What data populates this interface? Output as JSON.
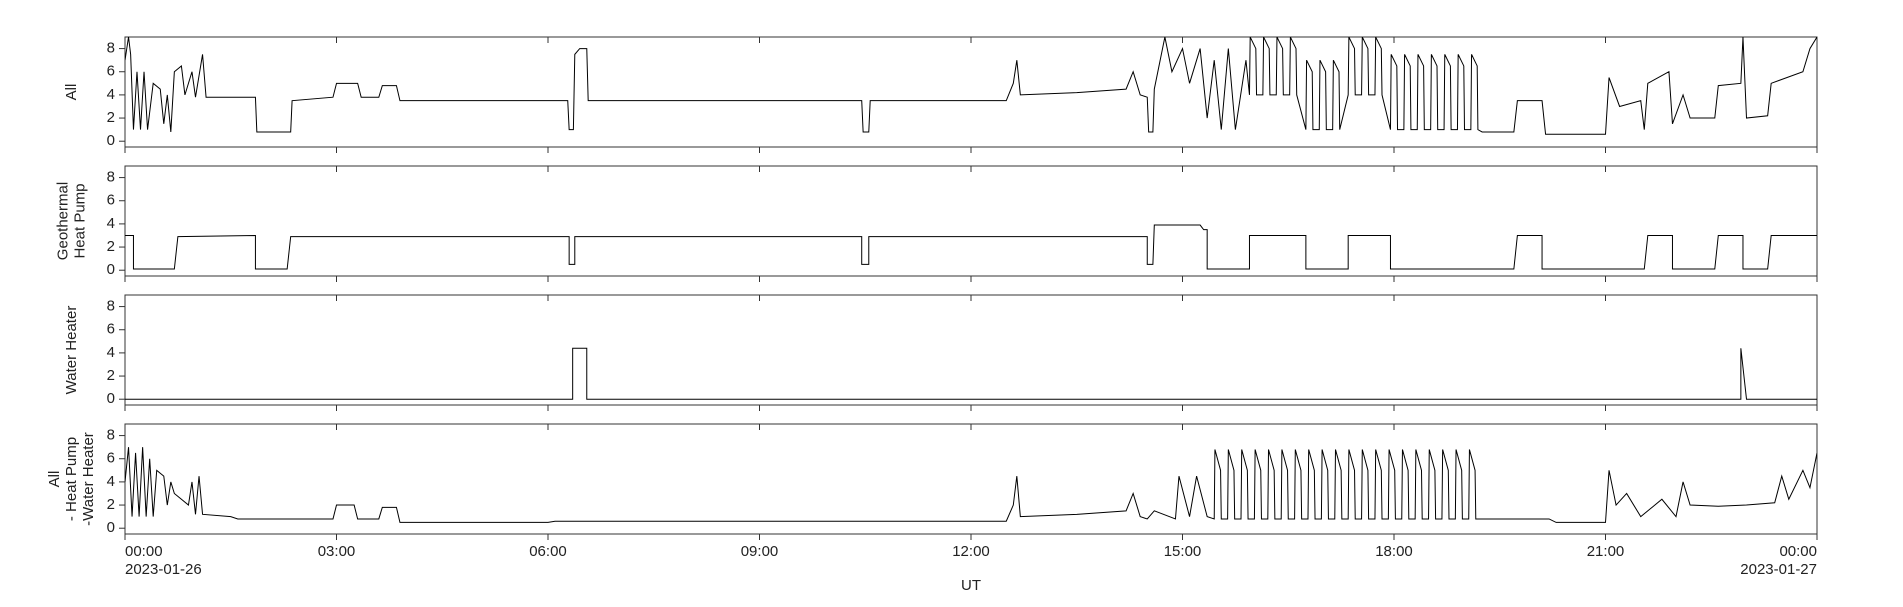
{
  "chart_data": [
    {
      "type": "line",
      "ylabel": [
        "All"
      ],
      "xlim": [
        0,
        24
      ],
      "xticks": [
        0,
        3,
        6,
        9,
        12,
        15,
        18,
        21,
        24
      ],
      "ylim": [
        -0.5,
        9
      ],
      "yticks": [
        0,
        2,
        4,
        6,
        8
      ],
      "color": "#000000",
      "x": [
        0,
        0.05,
        0.08,
        0.12,
        0.17,
        0.22,
        0.27,
        0.32,
        0.4,
        0.5,
        0.55,
        0.6,
        0.65,
        0.7,
        0.8,
        0.85,
        0.95,
        1.0,
        1.1,
        1.15,
        1.85,
        1.87,
        2.35,
        2.37,
        2.95,
        3.0,
        3.3,
        3.35,
        3.6,
        3.65,
        3.85,
        3.9,
        6.28,
        6.3,
        6.36,
        6.38,
        6.45,
        6.55,
        6.57,
        10.45,
        10.47,
        10.55,
        10.57,
        12.5,
        12.6,
        12.65,
        12.7,
        13.5,
        14.2,
        14.3,
        14.4,
        14.5,
        14.52,
        14.58,
        14.6,
        14.75,
        14.85,
        15.0,
        15.1,
        15.25,
        15.35,
        15.45,
        15.55,
        15.65,
        15.75,
        15.9,
        15.95,
        15.96,
        16.04,
        16.05,
        16.14,
        16.15,
        16.23,
        16.24,
        16.33,
        16.34,
        16.42,
        16.43,
        16.52,
        16.53,
        16.61,
        16.62,
        16.75,
        16.76,
        16.84,
        16.85,
        16.94,
        16.95,
        17.03,
        17.04,
        17.13,
        17.14,
        17.22,
        17.23,
        17.35,
        17.36,
        17.44,
        17.45,
        17.54,
        17.55,
        17.63,
        17.64,
        17.73,
        17.74,
        17.82,
        17.83,
        17.95,
        17.96,
        18.04,
        18.05,
        18.14,
        18.15,
        18.23,
        18.24,
        18.33,
        18.34,
        18.42,
        18.43,
        18.52,
        18.53,
        18.61,
        18.62,
        18.71,
        18.72,
        18.8,
        18.81,
        18.9,
        18.91,
        18.99,
        19.0,
        19.09,
        19.1,
        19.18,
        19.19,
        19.25,
        19.7,
        19.75,
        20.1,
        20.15,
        21.0,
        21.05,
        21.2,
        21.5,
        21.55,
        21.6,
        21.9,
        21.95,
        22.1,
        22.2,
        22.55,
        22.6,
        22.92,
        22.95,
        23.0,
        23.3,
        23.35,
        23.8,
        23.9,
        24
      ],
      "values": [
        7,
        9,
        7.5,
        1,
        6,
        1,
        6,
        1,
        5,
        4.5,
        1.5,
        4,
        0.8,
        6,
        6.5,
        4,
        6,
        3.8,
        7.5,
        3.8,
        3.8,
        0.8,
        0.8,
        3.5,
        3.8,
        5,
        5,
        3.8,
        3.8,
        4.8,
        4.8,
        3.5,
        3.5,
        1,
        1,
        7.5,
        8,
        8,
        3.5,
        3.5,
        0.8,
        0.8,
        3.5,
        3.5,
        5,
        7,
        4,
        4.2,
        4.5,
        6,
        4,
        3.8,
        0.8,
        0.8,
        4.5,
        9,
        6,
        8,
        5,
        8,
        2,
        7,
        1,
        8,
        1,
        7,
        4,
        9,
        8,
        4,
        4,
        9,
        8,
        4,
        4,
        9,
        8,
        4,
        4,
        9,
        8,
        4,
        1,
        7,
        6,
        1,
        1,
        7,
        6,
        1,
        1,
        7,
        6,
        1,
        4,
        9,
        8,
        4,
        4,
        9,
        8,
        4,
        4,
        9,
        8,
        4,
        1,
        7.5,
        6.5,
        1,
        1,
        7.5,
        6.5,
        1,
        1,
        7.5,
        6.5,
        1,
        1,
        7.5,
        6.5,
        1,
        1,
        7.5,
        6.5,
        1,
        1,
        7.5,
        6.5,
        1,
        1,
        7.5,
        6.5,
        1,
        0.8,
        0.8,
        3.5,
        3.5,
        0.6,
        0.6,
        5.5,
        3,
        3.5,
        1,
        5,
        6,
        1.5,
        4,
        2,
        2,
        4.8,
        5,
        9,
        2,
        2.2,
        5,
        6,
        8,
        9
      ]
    },
    {
      "type": "line",
      "ylabel": [
        "Geothermal",
        "Heat Pump"
      ],
      "xlim": [
        0,
        24
      ],
      "xticks": [
        0,
        3,
        6,
        9,
        12,
        15,
        18,
        21,
        24
      ],
      "ylim": [
        -0.5,
        9
      ],
      "yticks": [
        0,
        2,
        4,
        6,
        8
      ],
      "color": "#000000",
      "x": [
        0,
        0.12,
        0.12,
        0.7,
        0.75,
        1.85,
        1.85,
        2.05,
        2.05,
        2.3,
        2.35,
        6.3,
        6.3,
        6.38,
        6.38,
        10.45,
        10.45,
        10.55,
        10.55,
        14.5,
        14.5,
        14.58,
        14.6,
        15.25,
        15.3,
        15.35,
        15.35,
        15.95,
        15.95,
        16.75,
        16.75,
        17.35,
        17.35,
        17.95,
        17.95,
        19.7,
        19.75,
        20.1,
        20.1,
        21.55,
        21.6,
        21.95,
        21.95,
        22.55,
        22.6,
        22.95,
        22.95,
        23.3,
        23.35,
        24
      ],
      "values": [
        3,
        3,
        0.1,
        0.1,
        2.9,
        3,
        0.1,
        0.1,
        0.1,
        0.1,
        2.9,
        2.9,
        0.5,
        0.5,
        2.9,
        2.9,
        0.5,
        0.5,
        2.9,
        2.9,
        0.5,
        0.5,
        3.9,
        3.9,
        3.5,
        3.5,
        0.1,
        0.1,
        3,
        3,
        0.1,
        0.1,
        3,
        3,
        0.1,
        0.1,
        3,
        3,
        0.1,
        0.1,
        3,
        3,
        0.1,
        0.1,
        3,
        3,
        0.1,
        0.1,
        3,
        3
      ]
    },
    {
      "type": "line",
      "ylabel": [
        "Water Heater"
      ],
      "xlim": [
        0,
        24
      ],
      "xticks": [
        0,
        3,
        6,
        9,
        12,
        15,
        18,
        21,
        24
      ],
      "ylim": [
        -0.5,
        9
      ],
      "yticks": [
        0,
        2,
        4,
        6,
        8
      ],
      "color": "#000000",
      "x": [
        0,
        6.35,
        6.35,
        6.55,
        6.55,
        22.92,
        22.92,
        23.0,
        24
      ],
      "values": [
        0,
        0,
        4.4,
        4.4,
        0,
        0,
        4.4,
        0,
        0
      ]
    },
    {
      "type": "line",
      "ylabel": [
        "All",
        "- Heat Pump",
        "-Water Heater"
      ],
      "xlim": [
        0,
        24
      ],
      "ylim": [
        -0.5,
        9
      ],
      "yticks": [
        0,
        2,
        4,
        6,
        8
      ],
      "color": "#000000",
      "xticks": [
        {
          "value": 0,
          "label": "00:00"
        },
        {
          "value": 3,
          "label": "03:00"
        },
        {
          "value": 6,
          "label": "06:00"
        },
        {
          "value": 9,
          "label": "09:00"
        },
        {
          "value": 12,
          "label": "12:00"
        },
        {
          "value": 15,
          "label": "15:00"
        },
        {
          "value": 18,
          "label": "18:00"
        },
        {
          "value": 21,
          "label": "21:00"
        },
        {
          "value": 24,
          "label": "00:00"
        }
      ],
      "xtick_dates": [
        {
          "value": 0,
          "label": "2023-01-26"
        },
        {
          "value": 24,
          "label": "2023-01-27"
        }
      ],
      "xlabel": "UT",
      "x": [
        0,
        0.05,
        0.1,
        0.15,
        0.2,
        0.25,
        0.3,
        0.35,
        0.4,
        0.45,
        0.55,
        0.6,
        0.65,
        0.7,
        0.8,
        0.9,
        0.95,
        1.0,
        1.05,
        1.1,
        1.5,
        1.6,
        2.5,
        2.95,
        3.0,
        3.25,
        3.3,
        3.6,
        3.65,
        3.85,
        3.9,
        6.0,
        6.1,
        12.5,
        12.6,
        12.65,
        12.7,
        13.5,
        14.2,
        14.3,
        14.4,
        14.5,
        14.6,
        14.9,
        14.95,
        15.1,
        15.2,
        15.35,
        15.45,
        15.46,
        15.54,
        15.55,
        15.64,
        15.65,
        15.73,
        15.74,
        15.83,
        15.84,
        15.92,
        15.93,
        16.02,
        16.03,
        16.11,
        16.12,
        16.21,
        16.22,
        16.3,
        16.31,
        16.4,
        16.41,
        16.49,
        16.5,
        16.59,
        16.6,
        16.68,
        16.69,
        16.78,
        16.79,
        16.87,
        16.88,
        16.97,
        16.98,
        17.06,
        17.07,
        17.16,
        17.17,
        17.25,
        17.26,
        17.35,
        17.36,
        17.44,
        17.45,
        17.54,
        17.55,
        17.63,
        17.64,
        17.73,
        17.74,
        17.82,
        17.83,
        17.92,
        17.93,
        18.01,
        18.02,
        18.11,
        18.12,
        18.2,
        18.21,
        18.3,
        18.31,
        18.39,
        18.4,
        18.49,
        18.5,
        18.58,
        18.59,
        18.68,
        18.69,
        18.77,
        18.78,
        18.87,
        18.88,
        18.96,
        18.97,
        19.06,
        19.07,
        19.15,
        19.16,
        19.25,
        20.2,
        20.3,
        21.0,
        21.05,
        21.15,
        21.3,
        21.5,
        21.8,
        22.0,
        22.1,
        22.2,
        22.6,
        23.0,
        23.4,
        23.5,
        23.6,
        23.8,
        23.9,
        24
      ],
      "values": [
        4,
        7,
        1,
        6.5,
        1,
        7,
        1,
        6,
        1,
        5,
        4.5,
        2,
        4,
        3,
        2.5,
        2,
        4,
        1.2,
        4.5,
        1.2,
        1,
        0.8,
        0.8,
        0.8,
        2,
        2,
        0.8,
        0.8,
        1.8,
        1.8,
        0.5,
        0.5,
        0.6,
        0.6,
        2,
        4.5,
        1,
        1.2,
        1.5,
        3,
        1,
        0.8,
        1.5,
        0.8,
        4.5,
        1,
        4.5,
        1,
        0.8,
        6.8,
        5,
        0.8,
        0.8,
        6.8,
        5,
        0.8,
        0.8,
        6.8,
        5,
        0.8,
        0.8,
        6.8,
        5,
        0.8,
        0.8,
        6.8,
        5,
        0.8,
        0.8,
        6.8,
        5,
        0.8,
        0.8,
        6.8,
        5,
        0.8,
        0.8,
        6.8,
        5,
        0.8,
        0.8,
        6.8,
        5,
        0.8,
        0.8,
        6.8,
        5,
        0.8,
        0.8,
        6.8,
        5,
        0.8,
        0.8,
        6.8,
        5,
        0.8,
        0.8,
        6.8,
        5,
        0.8,
        0.8,
        6.8,
        5,
        0.8,
        0.8,
        6.8,
        5,
        0.8,
        0.8,
        6.8,
        5,
        0.8,
        0.8,
        6.8,
        5,
        0.8,
        0.8,
        6.8,
        5,
        0.8,
        0.8,
        6.8,
        5,
        0.8,
        0.8,
        6.8,
        5,
        0.8,
        0.8,
        0.8,
        0.5,
        0.5,
        5,
        2,
        3,
        1,
        2.5,
        1,
        4,
        2,
        1.9,
        2,
        2.2,
        4.5,
        2.5,
        5,
        3.5,
        6.5
      ]
    }
  ]
}
